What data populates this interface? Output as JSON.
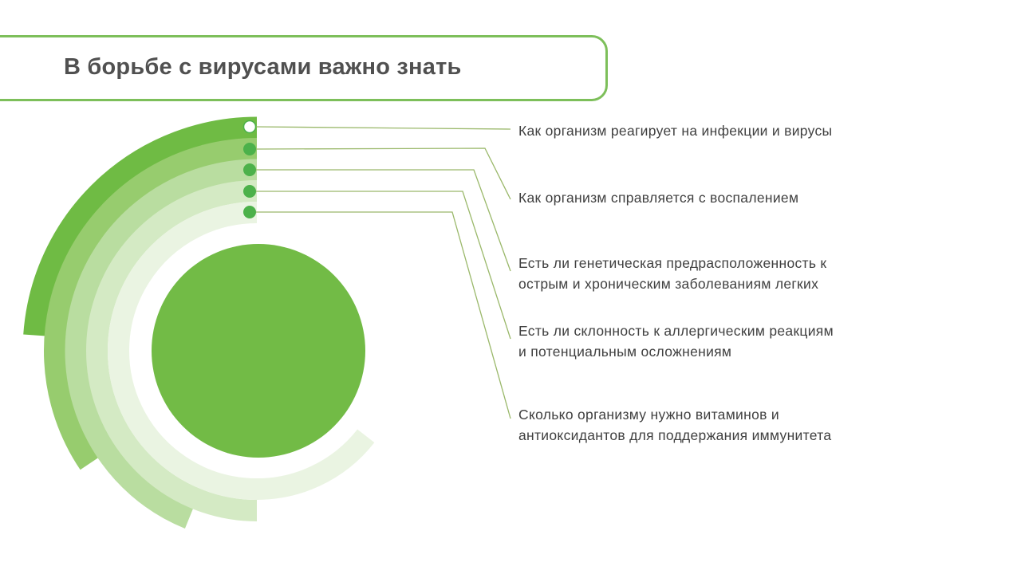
{
  "title": "В борьбе с вирусами важно знать",
  "colors": {
    "accent": "#7dbf5a",
    "rings": [
      "#6fbb44",
      "#97cc6e",
      "#b9dda0",
      "#d4eac4",
      "#eaf4e2"
    ],
    "center": "#72bb46",
    "dot": "#4cb14a",
    "connector": "#9ab86a"
  },
  "items": [
    {
      "lines": [
        "Как организм реагирует на инфекции и вирусы"
      ]
    },
    {
      "lines": [
        "Как организм справляется с воспалением"
      ]
    },
    {
      "lines": [
        "Есть ли генетическая предрасположенность к",
        "острым и хроническим заболеваниям легких"
      ]
    },
    {
      "lines": [
        "Есть ли склонность к аллергическим реакциям",
        "и потенциальным осложнениям"
      ]
    },
    {
      "lines": [
        "Сколько организму нужно витаминов и",
        "антиоксидантов для поддержания иммунитета"
      ]
    }
  ]
}
